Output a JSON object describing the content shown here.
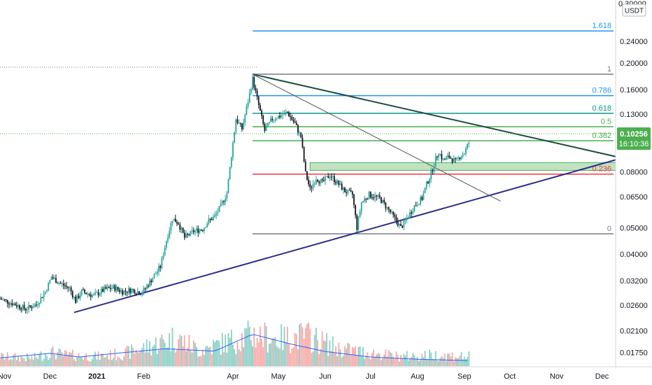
{
  "chart_data": {
    "type": "candlestick",
    "currency": "USDT",
    "y_scale": "log",
    "ylim": [
      0.0155,
      0.34
    ],
    "y_ticks": [
      {
        "value": 0.24,
        "label": "0.24000"
      },
      {
        "value": 0.2,
        "label": "0.20000"
      },
      {
        "value": 0.16,
        "label": "0.16000"
      },
      {
        "value": 0.13,
        "label": "0.13000"
      },
      {
        "value": 0.08,
        "label": "0.08000"
      },
      {
        "value": 0.065,
        "label": "0.06500"
      },
      {
        "value": 0.05,
        "label": "0.05000"
      },
      {
        "value": 0.04,
        "label": "0.04000"
      },
      {
        "value": 0.032,
        "label": "0.03200"
      },
      {
        "value": 0.026,
        "label": "0.02600"
      },
      {
        "value": 0.021,
        "label": "0.02100"
      },
      {
        "value": 0.0175,
        "label": "0.01750"
      }
    ],
    "top_partial_label": "0.30000",
    "x_ticks": [
      {
        "date": "2020-11-01",
        "label": "Nov"
      },
      {
        "date": "2020-12-01",
        "label": "Dec"
      },
      {
        "date": "2021-01-01",
        "label": "2021"
      },
      {
        "date": "2021-02-01",
        "label": "Feb"
      },
      {
        "date": "2021-04-01",
        "label": "Apr"
      },
      {
        "date": "2021-05-01",
        "label": "May"
      },
      {
        "date": "2021-06-01",
        "label": "Jun"
      },
      {
        "date": "2021-07-01",
        "label": "Jul"
      },
      {
        "date": "2021-08-01",
        "label": "Aug"
      },
      {
        "date": "2021-09-01",
        "label": "Sep"
      },
      {
        "date": "2021-10-01",
        "label": "Oct"
      },
      {
        "date": "2021-11-01",
        "label": "Nov"
      },
      {
        "date": "2021-12-01",
        "label": "Dec"
      }
    ],
    "x_range": [
      "2020-10-29",
      "2021-12-10"
    ],
    "last_price": {
      "value": 0.10256,
      "label": "0.10256",
      "countdown": "16:10:36"
    },
    "fibonacci": {
      "start_date": "2021-04-14",
      "levels": [
        {
          "ratio": "1.618",
          "value": 0.262,
          "color": "#2196f3"
        },
        {
          "ratio": "1",
          "value": 0.182,
          "color": "#787b86"
        },
        {
          "ratio": "0.786",
          "value": 0.152,
          "color": "#2196f3"
        },
        {
          "ratio": "0.618",
          "value": 0.131,
          "color": "#089981"
        },
        {
          "ratio": "0.5",
          "value": 0.117,
          "color": "#4caf50"
        },
        {
          "ratio": "0.382",
          "value": 0.104,
          "color": "#4caf50"
        },
        {
          "ratio": "0.236",
          "value": 0.0785,
          "color": "#f23645"
        },
        {
          "ratio": "0",
          "value": 0.0475,
          "color": "#787b86"
        }
      ]
    },
    "support_zone": {
      "from": "2021-05-22",
      "to": "2021-12-10",
      "low": 0.081,
      "high": 0.0865,
      "color": "#4caf50"
    },
    "trendlines": [
      {
        "from": {
          "date": "2020-12-17",
          "v": 0.0245
        },
        "to": {
          "date": "2021-12-10",
          "v": 0.0885
        },
        "color": "#2a2e8c"
      },
      {
        "from": {
          "date": "2021-04-14",
          "v": 0.182
        },
        "to": {
          "date": "2021-12-10",
          "v": 0.091
        },
        "color": "#1a4d40"
      },
      {
        "from": {
          "date": "2021-04-14",
          "v": 0.182
        },
        "to": {
          "date": "2021-09-25",
          "v": 0.0625
        },
        "color": "#555555"
      }
    ],
    "price_path": [
      {
        "date": "2020-10-29",
        "v": 0.0275
      },
      {
        "date": "2020-11-08",
        "v": 0.0262
      },
      {
        "date": "2020-11-15",
        "v": 0.0252
      },
      {
        "date": "2020-11-22",
        "v": 0.0262
      },
      {
        "date": "2020-11-28",
        "v": 0.0292
      },
      {
        "date": "2020-12-02",
        "v": 0.033
      },
      {
        "date": "2020-12-08",
        "v": 0.0312
      },
      {
        "date": "2020-12-14",
        "v": 0.03
      },
      {
        "date": "2020-12-18",
        "v": 0.027
      },
      {
        "date": "2020-12-22",
        "v": 0.0292
      },
      {
        "date": "2020-12-30",
        "v": 0.0282
      },
      {
        "date": "2021-01-06",
        "v": 0.0297
      },
      {
        "date": "2021-01-12",
        "v": 0.0302
      },
      {
        "date": "2021-01-18",
        "v": 0.0292
      },
      {
        "date": "2021-01-24",
        "v": 0.0296
      },
      {
        "date": "2021-01-31",
        "v": 0.0289
      },
      {
        "date": "2021-02-06",
        "v": 0.0322
      },
      {
        "date": "2021-02-12",
        "v": 0.036
      },
      {
        "date": "2021-02-16",
        "v": 0.045
      },
      {
        "date": "2021-02-20",
        "v": 0.054
      },
      {
        "date": "2021-02-24",
        "v": 0.052
      },
      {
        "date": "2021-02-28",
        "v": 0.046
      },
      {
        "date": "2021-03-06",
        "v": 0.0485
      },
      {
        "date": "2021-03-12",
        "v": 0.0495
      },
      {
        "date": "2021-03-16",
        "v": 0.053
      },
      {
        "date": "2021-03-20",
        "v": 0.055
      },
      {
        "date": "2021-03-24",
        "v": 0.06
      },
      {
        "date": "2021-03-28",
        "v": 0.067
      },
      {
        "date": "2021-03-31",
        "v": 0.092
      },
      {
        "date": "2021-04-03",
        "v": 0.125
      },
      {
        "date": "2021-04-07",
        "v": 0.115
      },
      {
        "date": "2021-04-11",
        "v": 0.145
      },
      {
        "date": "2021-04-14",
        "v": 0.175
      },
      {
        "date": "2021-04-18",
        "v": 0.14
      },
      {
        "date": "2021-04-22",
        "v": 0.113
      },
      {
        "date": "2021-04-27",
        "v": 0.125
      },
      {
        "date": "2021-05-02",
        "v": 0.128
      },
      {
        "date": "2021-05-07",
        "v": 0.132
      },
      {
        "date": "2021-05-12",
        "v": 0.12
      },
      {
        "date": "2021-05-16",
        "v": 0.107
      },
      {
        "date": "2021-05-19",
        "v": 0.079
      },
      {
        "date": "2021-05-22",
        "v": 0.069
      },
      {
        "date": "2021-05-26",
        "v": 0.076
      },
      {
        "date": "2021-05-30",
        "v": 0.073
      },
      {
        "date": "2021-06-04",
        "v": 0.078
      },
      {
        "date": "2021-06-09",
        "v": 0.073
      },
      {
        "date": "2021-06-14",
        "v": 0.068
      },
      {
        "date": "2021-06-19",
        "v": 0.066
      },
      {
        "date": "2021-06-22",
        "v": 0.05
      },
      {
        "date": "2021-06-25",
        "v": 0.062
      },
      {
        "date": "2021-06-30",
        "v": 0.066
      },
      {
        "date": "2021-07-07",
        "v": 0.064
      },
      {
        "date": "2021-07-13",
        "v": 0.058
      },
      {
        "date": "2021-07-18",
        "v": 0.053
      },
      {
        "date": "2021-07-21",
        "v": 0.05
      },
      {
        "date": "2021-07-25",
        "v": 0.054
      },
      {
        "date": "2021-07-30",
        "v": 0.06
      },
      {
        "date": "2021-08-04",
        "v": 0.064
      },
      {
        "date": "2021-08-07",
        "v": 0.072
      },
      {
        "date": "2021-08-10",
        "v": 0.079
      },
      {
        "date": "2021-08-13",
        "v": 0.089
      },
      {
        "date": "2021-08-15",
        "v": 0.095
      },
      {
        "date": "2021-08-18",
        "v": 0.088
      },
      {
        "date": "2021-08-22",
        "v": 0.091
      },
      {
        "date": "2021-08-26",
        "v": 0.087
      },
      {
        "date": "2021-08-29",
        "v": 0.091
      },
      {
        "date": "2021-09-01",
        "v": 0.094
      },
      {
        "date": "2021-09-04",
        "v": 0.1025
      }
    ],
    "volume_path": [
      {
        "date": "2020-10-29",
        "v": 0.3
      },
      {
        "date": "2020-11-20",
        "v": 0.25
      },
      {
        "date": "2020-12-01",
        "v": 0.45
      },
      {
        "date": "2020-12-10",
        "v": 0.35
      },
      {
        "date": "2021-01-01",
        "v": 0.3
      },
      {
        "date": "2021-01-20",
        "v": 0.4
      },
      {
        "date": "2021-02-10",
        "v": 0.7
      },
      {
        "date": "2021-02-22",
        "v": 0.9
      },
      {
        "date": "2021-03-10",
        "v": 0.5
      },
      {
        "date": "2021-03-31",
        "v": 0.8
      },
      {
        "date": "2021-04-14",
        "v": 1.0
      },
      {
        "date": "2021-05-01",
        "v": 0.85
      },
      {
        "date": "2021-05-20",
        "v": 0.95
      },
      {
        "date": "2021-06-10",
        "v": 0.55
      },
      {
        "date": "2021-06-25",
        "v": 0.45
      },
      {
        "date": "2021-07-20",
        "v": 0.3
      },
      {
        "date": "2021-08-10",
        "v": 0.35
      },
      {
        "date": "2021-09-04",
        "v": 0.3
      }
    ],
    "volume_ma_path": [
      {
        "date": "2020-10-29",
        "v": 0.18
      },
      {
        "date": "2020-12-01",
        "v": 0.28
      },
      {
        "date": "2020-12-20",
        "v": 0.2
      },
      {
        "date": "2021-01-20",
        "v": 0.3
      },
      {
        "date": "2021-02-15",
        "v": 0.38
      },
      {
        "date": "2021-03-20",
        "v": 0.33
      },
      {
        "date": "2021-04-14",
        "v": 0.7
      },
      {
        "date": "2021-05-10",
        "v": 0.48
      },
      {
        "date": "2021-06-01",
        "v": 0.32
      },
      {
        "date": "2021-07-01",
        "v": 0.2
      },
      {
        "date": "2021-08-01",
        "v": 0.15
      },
      {
        "date": "2021-09-04",
        "v": 0.12
      }
    ],
    "colors": {
      "up": "#26a69a",
      "down": "#131722",
      "volume_up": "#89cfc6",
      "volume_down": "#f7a9a7",
      "volume_ma": "#2962ff",
      "last_price_bg": "#4caf50"
    }
  }
}
